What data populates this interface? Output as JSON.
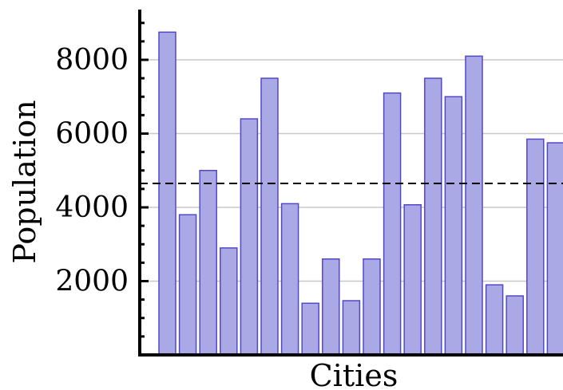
{
  "chart_data": {
    "type": "bar",
    "xlabel": "Cities",
    "ylabel": "Population",
    "values": [
      8750,
      3800,
      5000,
      2900,
      6400,
      7500,
      4100,
      1400,
      2600,
      1470,
      2600,
      7100,
      4070,
      7500,
      7000,
      8100,
      1900,
      1600,
      5850,
      5750
    ],
    "ylim": [
      0,
      9300
    ],
    "yticks": [
      2000,
      4000,
      6000,
      8000
    ],
    "ytick_labels": [
      "2000",
      "4000",
      "6000",
      "8000"
    ],
    "reference_line": {
      "value": 4650,
      "style": "dashed"
    },
    "grid": "horizontal",
    "bar_fill": "#aaa9e6",
    "bar_stroke": "#5148c8",
    "grid_color": "#c8c8c8"
  }
}
